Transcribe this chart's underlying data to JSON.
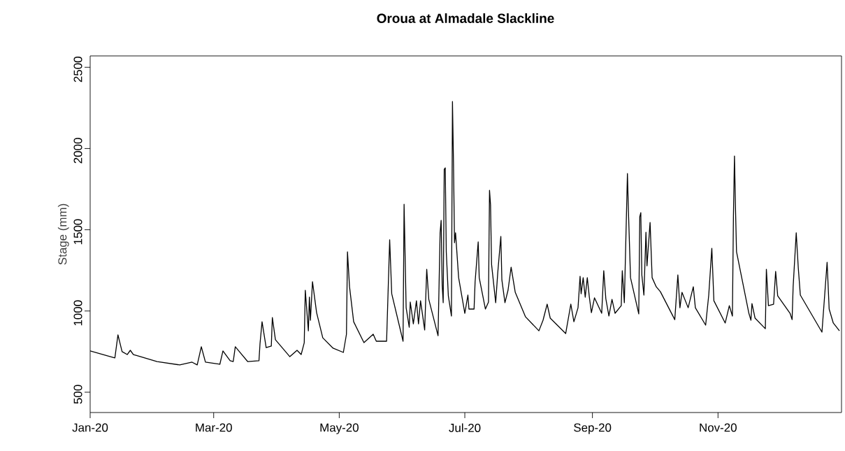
{
  "chart_data": {
    "type": "line",
    "title": "Oroua at Almadale Slackline",
    "ylabel": "Stage (mm)",
    "color": "#000000",
    "x": [
      "2020-01-01",
      "2020-01-13",
      "2020-01-14T12:00",
      "2020-01-16T12:00",
      "2020-01-19",
      "2020-01-20T12:00",
      "2020-01-22",
      "2020-02-02T12:00",
      "2020-02-13T12:00",
      "2020-02-19T12:00",
      "2020-02-22",
      "2020-02-24",
      "2020-02-26",
      "2020-03-04",
      "2020-03-05T12:00",
      "2020-03-09",
      "2020-03-10T12:00",
      "2020-03-11T12:00",
      "2020-03-17T12:00",
      "2020-03-23",
      "2020-03-23T12:00",
      "2020-03-24T12:00",
      "2020-03-26T12:00",
      "2020-03-29",
      "2020-03-29T12:00",
      "2020-03-31",
      "2020-04-07",
      "2020-04-10T12:00",
      "2020-04-12T12:00",
      "2020-04-14",
      "2020-04-14T12:00",
      "2020-04-16",
      "2020-04-16T12:00",
      "2020-04-17",
      "2020-04-18",
      "2020-04-20",
      "2020-04-23",
      "2020-04-28",
      "2020-05-03",
      "2020-05-04T12:00",
      "2020-05-05",
      "2020-05-06",
      "2020-05-08",
      "2020-05-13",
      "2020-05-17T12:00",
      "2020-05-19",
      "2020-05-24",
      "2020-05-25T12:00",
      "2020-05-26T12:00",
      "2020-06-01",
      "2020-06-01T12:00",
      "2020-06-02T12:00",
      "2020-06-04",
      "2020-06-04T12:00",
      "2020-06-06",
      "2020-06-07T12:00",
      "2020-06-08T12:00",
      "2020-06-09T12:00",
      "2020-06-11T12:00",
      "2020-06-12T12:00",
      "2020-06-13T12:00",
      "2020-06-18",
      "2020-06-19",
      "2020-06-19T12:00",
      "2020-06-20",
      "2020-06-20T12:00",
      "2020-06-21",
      "2020-06-21T12:00",
      "2020-06-22",
      "2020-06-23",
      "2020-06-24T12:00",
      "2020-06-25",
      "2020-06-25T12:00",
      "2020-06-26",
      "2020-06-26T12:00",
      "2020-06-28",
      "2020-07-01",
      "2020-07-02T12:00",
      "2020-07-03",
      "2020-07-05T12:00",
      "2020-07-06",
      "2020-07-07T12:00",
      "2020-07-08",
      "2020-07-11",
      "2020-07-12T12:00",
      "2020-07-13",
      "2020-07-13T12:00",
      "2020-07-14",
      "2020-07-16",
      "2020-07-17",
      "2020-07-18T12:00",
      "2020-07-19",
      "2020-07-20T12:00",
      "2020-07-22",
      "2020-07-23T12:00",
      "2020-07-25T12:00",
      "2020-07-30T12:00",
      "2020-08-06",
      "2020-08-08",
      "2020-08-10",
      "2020-08-11T12:00",
      "2020-08-19",
      "2020-08-21T12:00",
      "2020-08-23",
      "2020-08-25",
      "2020-08-26",
      "2020-08-26T12:00",
      "2020-08-27T12:00",
      "2020-08-28T12:00",
      "2020-08-29T12:00",
      "2020-08-30T12:00",
      "2020-08-31T12:00",
      "2020-09-02",
      "2020-09-05T12:00",
      "2020-09-06T12:00",
      "2020-09-07T12:00",
      "2020-09-09",
      "2020-09-10T12:00",
      "2020-09-12",
      "2020-09-15",
      "2020-09-15T12:00",
      "2020-09-16T12:00",
      "2020-09-18",
      "2020-09-18T12:00",
      "2020-09-19T12:00",
      "2020-09-23T12:00",
      "2020-09-24",
      "2020-09-24T12:00",
      "2020-09-25",
      "2020-09-26",
      "2020-09-27",
      "2020-09-27T12:00",
      "2020-09-29",
      "2020-09-30",
      "2020-10-02",
      "2020-10-04",
      "2020-10-11",
      "2020-10-12T12:00",
      "2020-10-13T12:00",
      "2020-10-14T12:00",
      "2020-10-17T12:00",
      "2020-10-20",
      "2020-10-21",
      "2020-10-26",
      "2020-10-27T12:00",
      "2020-10-29",
      "2020-10-30",
      "2020-11-04T12:00",
      "2020-11-06T12:00",
      "2020-11-08",
      "2020-11-08T12:00",
      "2020-11-09",
      "2020-11-09T12:00",
      "2020-11-10",
      "2020-11-16",
      "2020-11-17",
      "2020-11-17T12:00",
      "2020-11-19",
      "2020-11-24",
      "2020-11-24T12:00",
      "2020-11-25T12:00",
      "2020-11-28",
      "2020-11-29",
      "2020-11-30",
      "2020-12-06",
      "2020-12-07",
      "2020-12-07T12:00",
      "2020-12-09",
      "2020-12-10",
      "2020-12-11",
      "2020-12-21T12:00",
      "2020-12-24",
      "2020-12-25",
      "2020-12-27",
      "2020-12-30"
    ],
    "values": [
      754,
      711,
      853,
      750,
      732,
      758,
      732,
      689,
      668,
      685,
      668,
      780,
      685,
      672,
      754,
      694,
      689,
      780,
      689,
      694,
      797,
      934,
      775,
      784,
      960,
      823,
      719,
      758,
      732,
      805,
      1128,
      878,
      1085,
      943,
      1180,
      990,
      835,
      771,
      745,
      857,
      1364,
      1149,
      934,
      805,
      857,
      814,
      814,
      1438,
      1106,
      814,
      1657,
      1020,
      900,
      1055,
      921,
      1063,
      921,
      1063,
      883,
      1257,
      1072,
      848,
      1481,
      1558,
      1162,
      1051,
      1872,
      1881,
      1364,
      1093,
      969,
      2289,
      1915,
      1420,
      1481,
      1205,
      986,
      1098,
      1012,
      1012,
      1180,
      1425,
      1205,
      1012,
      1055,
      1743,
      1653,
      1287,
      1051,
      1235,
      1459,
      1192,
      1051,
      1128,
      1270,
      1115,
      964,
      878,
      943,
      1042,
      956,
      861,
      1042,
      934,
      1020,
      1214,
      1106,
      1205,
      1085,
      1205,
      1085,
      990,
      1081,
      986,
      1248,
      1076,
      969,
      1072,
      986,
      1033,
      1248,
      1051,
      1846,
      1610,
      1205,
      982,
      1580,
      1605,
      1222,
      1098,
      1485,
      1278,
      1545,
      1205,
      1149,
      1119,
      947,
      1222,
      1020,
      1115,
      1020,
      1149,
      1020,
      913,
      1098,
      1386,
      1063,
      926,
      1033,
      969,
      1588,
      1954,
      1631,
      1364,
      986,
      943,
      1046,
      956,
      891,
      1257,
      1033,
      1042,
      1244,
      1093,
      986,
      947,
      1149,
      1481,
      1266,
      1098,
      870,
      1300,
      1012,
      926,
      878
    ],
    "xlim": [
      "2020-01-01",
      "2020-12-31"
    ],
    "ylim": [
      375,
      2570
    ],
    "xticks": [
      {
        "value": "2020-01-01",
        "label": "Jan-20"
      },
      {
        "value": "2020-03-01",
        "label": "Mar-20"
      },
      {
        "value": "2020-05-01",
        "label": "May-20"
      },
      {
        "value": "2020-07-01",
        "label": "Jul-20"
      },
      {
        "value": "2020-09-01",
        "label": "Sep-20"
      },
      {
        "value": "2020-11-01",
        "label": "Nov-20"
      }
    ],
    "yticks": [
      500,
      1000,
      1500,
      2000,
      2500
    ]
  }
}
